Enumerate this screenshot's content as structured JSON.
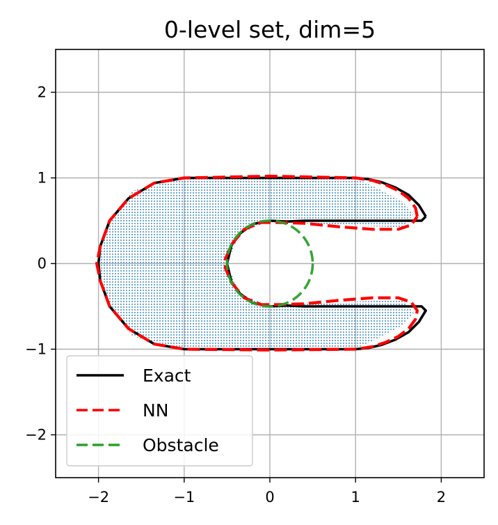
{
  "chart_data": {
    "type": "line",
    "title": "0-level set, dim=5",
    "xlabel": "",
    "ylabel": "",
    "xlim": [
      -2.5,
      2.5
    ],
    "ylim": [
      -2.5,
      2.5
    ],
    "grid": true,
    "legend_position": "lower-left",
    "xticks": [
      -2,
      -1,
      0,
      1,
      2
    ],
    "yticks": [
      -2,
      -1,
      0,
      1,
      2
    ],
    "xtick_labels": [
      "−2",
      "−1",
      "0",
      "1",
      "2"
    ],
    "ytick_labels": [
      "−2",
      "−1",
      "0",
      "1",
      "2"
    ],
    "filled_region": {
      "color": "#1f77b4",
      "description_points": [
        [
          -2.0,
          0.0
        ],
        [
          -1.9,
          -0.45
        ],
        [
          -1.6,
          -0.85
        ],
        [
          -1.0,
          -1.0
        ],
        [
          1.0,
          -1.0
        ],
        [
          1.25,
          -0.88
        ],
        [
          1.55,
          -0.72
        ],
        [
          1.68,
          -0.58
        ],
        [
          1.55,
          -0.42
        ],
        [
          0.4,
          -0.47
        ],
        [
          0.0,
          -0.5
        ],
        [
          -0.35,
          -0.35
        ],
        [
          -0.5,
          0.0
        ],
        [
          -0.35,
          0.35
        ],
        [
          0.0,
          0.5
        ],
        [
          0.4,
          0.47
        ],
        [
          1.55,
          0.42
        ],
        [
          1.68,
          0.58
        ],
        [
          1.55,
          0.72
        ],
        [
          1.25,
          0.88
        ],
        [
          1.0,
          1.0
        ],
        [
          -1.0,
          1.0
        ],
        [
          -1.6,
          0.85
        ],
        [
          -1.9,
          0.45
        ]
      ]
    },
    "series": [
      {
        "name": "Exact",
        "color": "#000000",
        "style": "solid",
        "x": [
          1.82,
          1.74,
          1.62,
          1.46,
          1.3,
          1.15,
          1.0,
          0.0,
          -1.0,
          -1.35,
          -1.65,
          -1.87,
          -1.98,
          -2.0,
          -1.98,
          -1.87,
          -1.65,
          -1.35,
          -1.0,
          0.0,
          1.0,
          1.15,
          1.3,
          1.46,
          1.62,
          1.74,
          1.82,
          1.77,
          0.4,
          0.2,
          0.0,
          -0.2,
          -0.35,
          -0.45,
          -0.5,
          -0.45,
          -0.35,
          -0.2,
          0.0,
          0.2,
          0.4,
          1.77,
          1.82
        ],
        "y": [
          0.55,
          0.68,
          0.8,
          0.89,
          0.95,
          0.985,
          1.0,
          1.0,
          1.0,
          0.94,
          0.76,
          0.5,
          0.2,
          0.0,
          -0.2,
          -0.5,
          -0.76,
          -0.94,
          -1.0,
          -1.0,
          -1.0,
          -0.985,
          -0.95,
          -0.89,
          -0.8,
          -0.68,
          -0.55,
          -0.5,
          -0.5,
          -0.49,
          -0.5,
          -0.46,
          -0.35,
          -0.21,
          0.0,
          0.21,
          0.35,
          0.46,
          0.5,
          0.49,
          0.5,
          0.5,
          0.55
        ]
      },
      {
        "name": "NN",
        "color": "#ff0000",
        "style": "dashed",
        "x": [
          1.72,
          1.7,
          1.62,
          1.5,
          1.35,
          1.2,
          1.0,
          0.0,
          -1.0,
          -1.35,
          -1.65,
          -1.87,
          -1.98,
          -2.02,
          -1.98,
          -1.87,
          -1.65,
          -1.35,
          -1.0,
          0.0,
          1.0,
          1.2,
          1.35,
          1.5,
          1.62,
          1.7,
          1.72,
          1.65,
          1.5,
          1.2,
          0.8,
          0.4,
          0.1,
          -0.1,
          -0.3,
          -0.45,
          -0.52,
          -0.52,
          -0.45,
          -0.3,
          -0.1,
          0.1,
          0.4,
          0.8,
          1.2,
          1.5,
          1.65,
          1.72
        ],
        "y": [
          0.55,
          0.65,
          0.76,
          0.85,
          0.92,
          0.97,
          1.0,
          1.02,
          1.0,
          0.94,
          0.76,
          0.5,
          0.2,
          0.0,
          -0.2,
          -0.5,
          -0.76,
          -0.94,
          -1.0,
          -1.01,
          -1.0,
          -0.97,
          -0.92,
          -0.85,
          -0.76,
          -0.65,
          -0.55,
          -0.45,
          -0.4,
          -0.4,
          -0.43,
          -0.47,
          -0.48,
          -0.48,
          -0.4,
          -0.22,
          -0.05,
          0.05,
          0.22,
          0.4,
          0.48,
          0.48,
          0.47,
          0.43,
          0.4,
          0.4,
          0.45,
          0.55
        ]
      },
      {
        "name": "Obstacle",
        "color": "#2ca02c",
        "style": "dashed",
        "type": "circle",
        "center": [
          0,
          0
        ],
        "radius": 0.5
      }
    ]
  }
}
